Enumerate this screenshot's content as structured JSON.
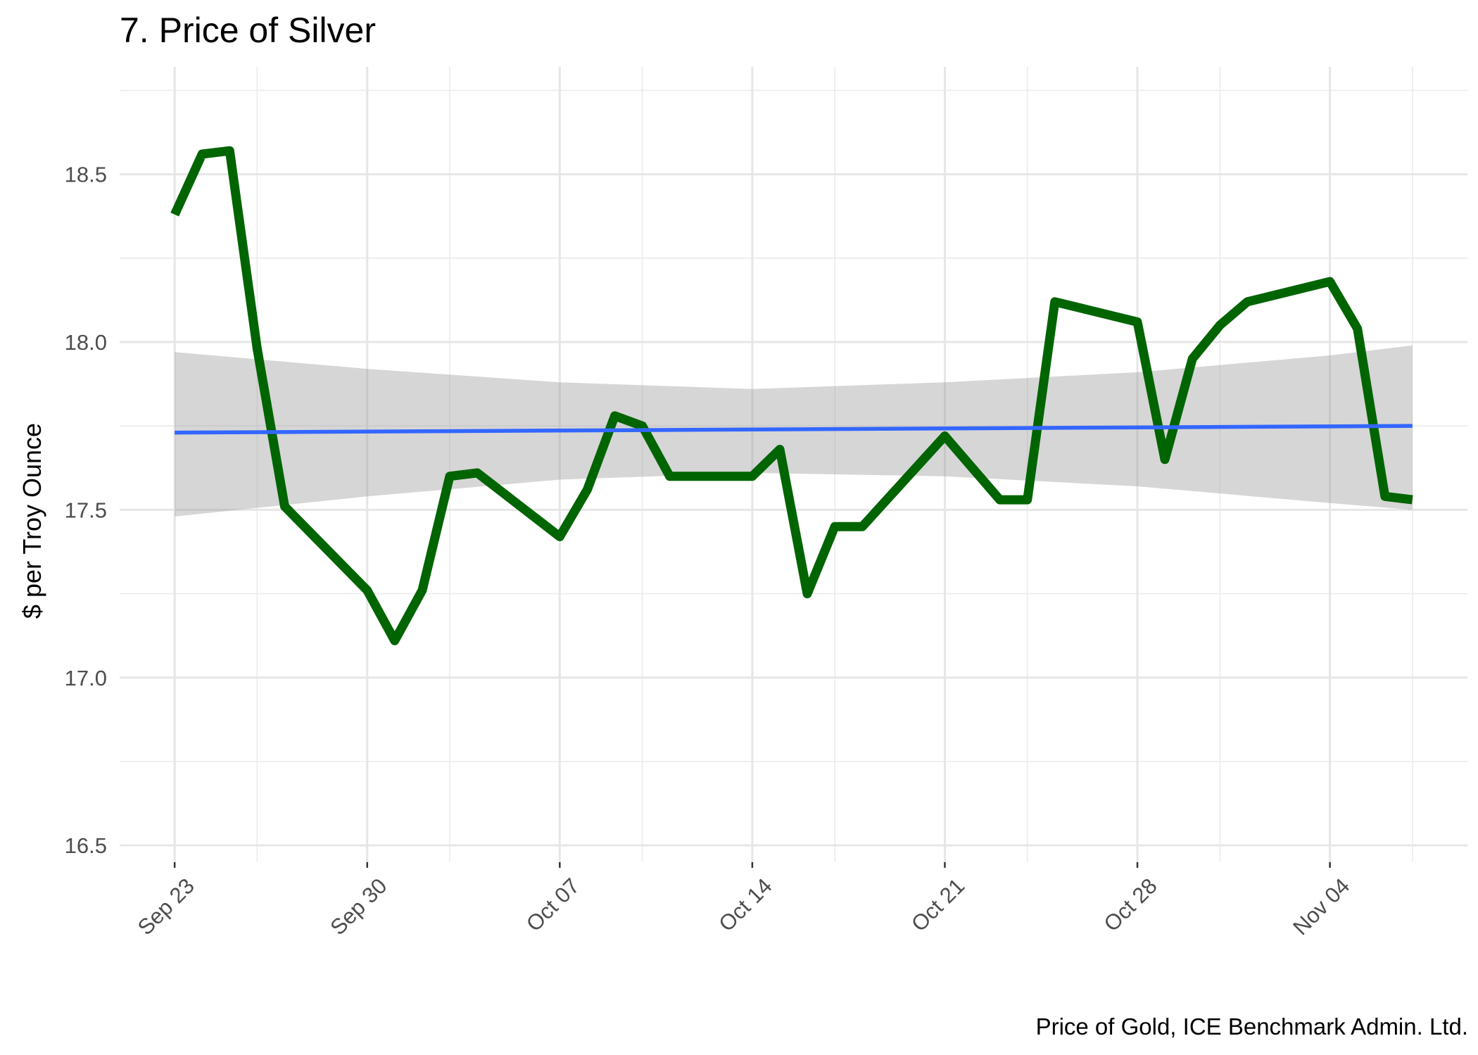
{
  "chart_data": {
    "type": "line",
    "title": "7. Price of Silver",
    "ylabel": "$ per Troy Ounce",
    "xlabel": "",
    "caption": "Price of Gold, ICE Benchmark Admin. Ltd.",
    "x_is_date": true,
    "xlim": [
      "2019-09-21",
      "2019-11-09"
    ],
    "ylim": [
      16.45,
      18.82
    ],
    "x_ticks": [
      {
        "date": "2019-09-23",
        "label": "Sep 23"
      },
      {
        "date": "2019-09-30",
        "label": "Sep 30"
      },
      {
        "date": "2019-10-07",
        "label": "Oct 07"
      },
      {
        "date": "2019-10-14",
        "label": "Oct 14"
      },
      {
        "date": "2019-10-21",
        "label": "Oct 21"
      },
      {
        "date": "2019-10-28",
        "label": "Oct 28"
      },
      {
        "date": "2019-11-04",
        "label": "Nov 04"
      }
    ],
    "x_minor_ticks": [
      "2019-09-26",
      "2019-10-03",
      "2019-10-10",
      "2019-10-17",
      "2019-10-24",
      "2019-10-31",
      "2019-11-07"
    ],
    "y_ticks": [
      {
        "value": 16.5,
        "label": "16.5"
      },
      {
        "value": 17.0,
        "label": "17.0"
      },
      {
        "value": 17.5,
        "label": "17.5"
      },
      {
        "value": 18.0,
        "label": "18.0"
      },
      {
        "value": 18.5,
        "label": "18.5"
      }
    ],
    "y_minor_ticks": [
      16.75,
      17.25,
      17.75,
      18.25,
      18.75
    ],
    "grid": true,
    "series": [
      {
        "color": "#006400",
        "points": [
          {
            "x": "2019-09-23",
            "y": 18.38
          },
          {
            "x": "2019-09-24",
            "y": 18.56
          },
          {
            "x": "2019-09-25",
            "y": 18.57
          },
          {
            "x": "2019-09-26",
            "y": 17.98
          },
          {
            "x": "2019-09-27",
            "y": 17.51
          },
          {
            "x": "2019-09-30",
            "y": 17.26
          },
          {
            "x": "2019-10-01",
            "y": 17.11
          },
          {
            "x": "2019-10-02",
            "y": 17.26
          },
          {
            "x": "2019-10-03",
            "y": 17.6
          },
          {
            "x": "2019-10-04",
            "y": 17.61
          },
          {
            "x": "2019-10-07",
            "y": 17.42
          },
          {
            "x": "2019-10-08",
            "y": 17.56
          },
          {
            "x": "2019-10-09",
            "y": 17.78
          },
          {
            "x": "2019-10-10",
            "y": 17.75
          },
          {
            "x": "2019-10-11",
            "y": 17.6
          },
          {
            "x": "2019-10-14",
            "y": 17.6
          },
          {
            "x": "2019-10-15",
            "y": 17.68
          },
          {
            "x": "2019-10-16",
            "y": 17.25
          },
          {
            "x": "2019-10-17",
            "y": 17.45
          },
          {
            "x": "2019-10-18",
            "y": 17.45
          },
          {
            "x": "2019-10-21",
            "y": 17.72
          },
          {
            "x": "2019-10-23",
            "y": 17.53
          },
          {
            "x": "2019-10-24",
            "y": 17.53
          },
          {
            "x": "2019-10-25",
            "y": 18.12
          },
          {
            "x": "2019-10-28",
            "y": 18.06
          },
          {
            "x": "2019-10-29",
            "y": 17.65
          },
          {
            "x": "2019-10-30",
            "y": 17.95
          },
          {
            "x": "2019-10-31",
            "y": 18.05
          },
          {
            "x": "2019-11-01",
            "y": 18.12
          },
          {
            "x": "2019-11-04",
            "y": 18.18
          },
          {
            "x": "2019-11-05",
            "y": 18.04
          },
          {
            "x": "2019-11-06",
            "y": 17.54
          },
          {
            "x": "2019-11-07",
            "y": 17.53
          }
        ]
      }
    ],
    "trend": {
      "color": "#3366FF",
      "x": [
        "2019-09-23",
        "2019-11-07"
      ],
      "y": [
        17.73,
        17.75
      ]
    },
    "confidence_band": {
      "color": "#999999",
      "points": [
        {
          "x": "2019-09-23",
          "lo": 17.48,
          "hi": 17.97
        },
        {
          "x": "2019-09-30",
          "lo": 17.54,
          "hi": 17.92
        },
        {
          "x": "2019-10-07",
          "lo": 17.59,
          "hi": 17.88
        },
        {
          "x": "2019-10-14",
          "lo": 17.61,
          "hi": 17.86
        },
        {
          "x": "2019-10-21",
          "lo": 17.6,
          "hi": 17.88
        },
        {
          "x": "2019-10-28",
          "lo": 17.57,
          "hi": 17.91
        },
        {
          "x": "2019-11-04",
          "lo": 17.52,
          "hi": 17.96
        },
        {
          "x": "2019-11-07",
          "lo": 17.5,
          "hi": 17.99
        }
      ]
    }
  }
}
